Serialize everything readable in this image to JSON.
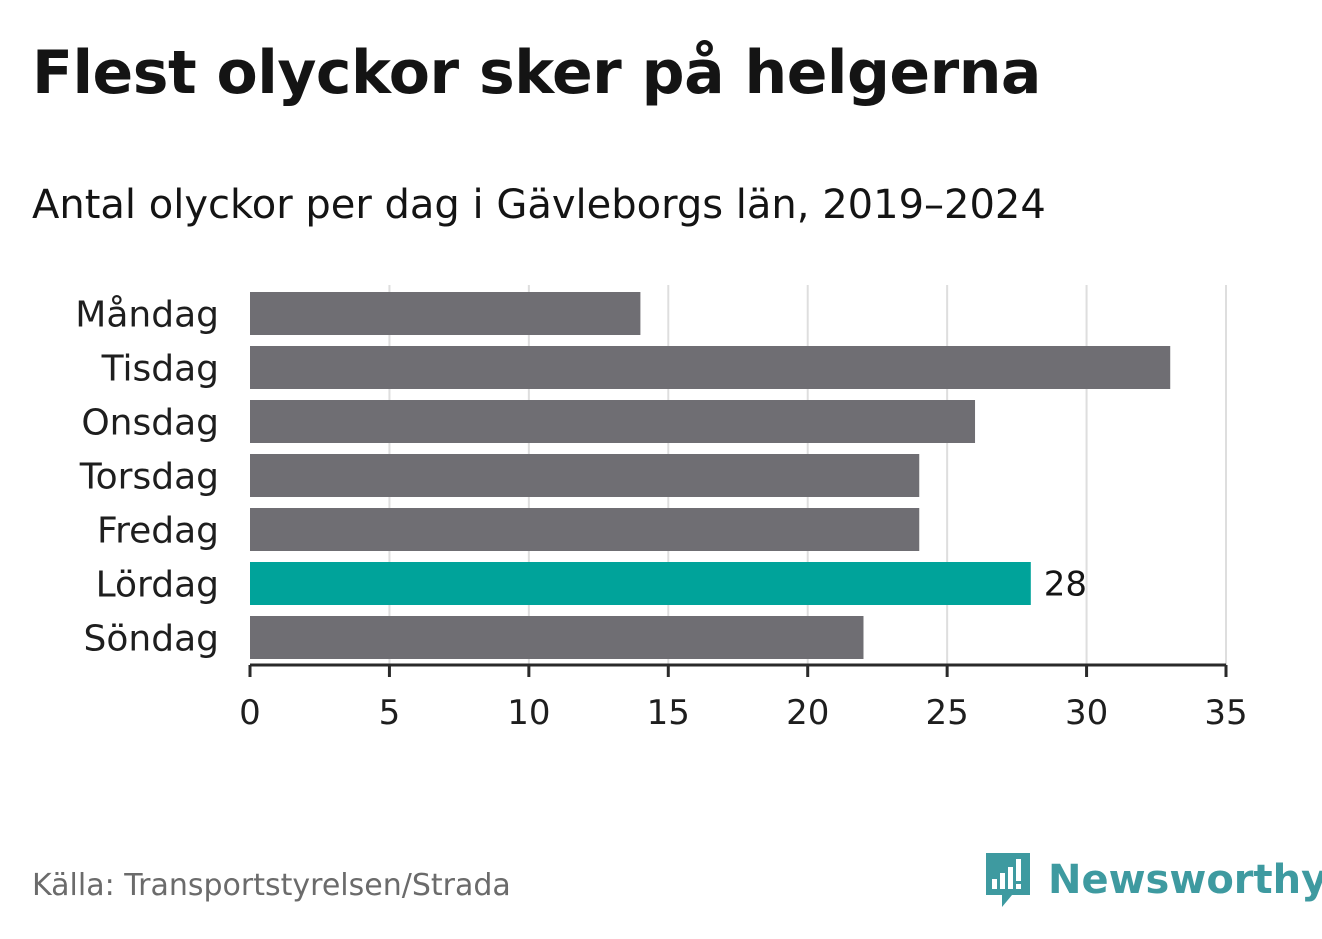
{
  "title": "Flest olyckor sker på helgerna",
  "subtitle": "Antal olyckor per dag i Gävleborgs län, 2019–2024",
  "source": "Källa: Transportstyrelsen/Strada",
  "brand": {
    "name": "Newsworthy",
    "icon": "newsworthy-logo-icon",
    "color": "#3e9aa0"
  },
  "chart_data": {
    "type": "bar",
    "orientation": "horizontal",
    "categories": [
      "Måndag",
      "Tisdag",
      "Onsdag",
      "Torsdag",
      "Fredag",
      "Lördag",
      "Söndag"
    ],
    "values": [
      14,
      33,
      26,
      24,
      24,
      28,
      22
    ],
    "highlight": {
      "category": "Lördag",
      "label": "28",
      "color": "#00a39a"
    },
    "bar_color": "#6f6e73",
    "xlim": [
      0,
      35
    ],
    "xticks": [
      0,
      5,
      10,
      15,
      20,
      25,
      30,
      35
    ],
    "grid": true
  }
}
